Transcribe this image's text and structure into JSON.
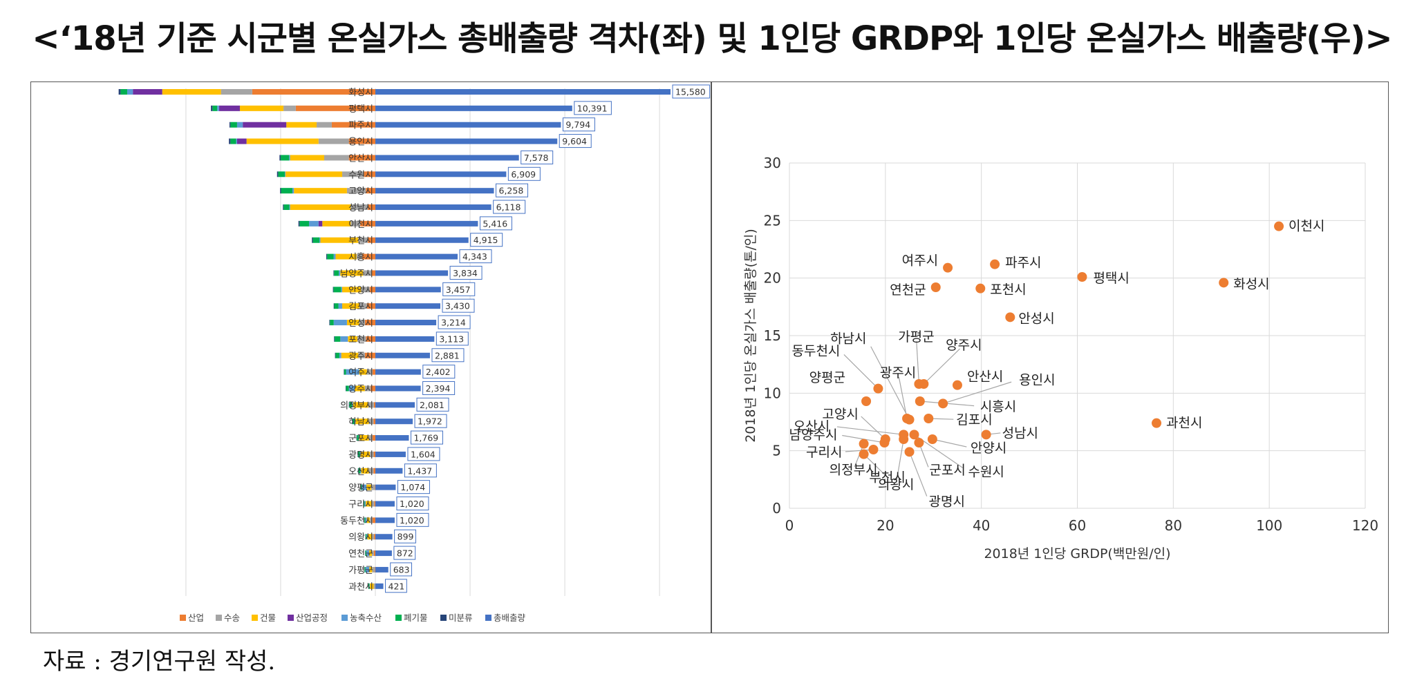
{
  "page": {
    "title": "<‘18년 기준 시군별 온실가스 총배출량 격차(좌) 및 1인당 GRDP와 1인당 온실가스 배출량(우)>",
    "source": "자료 : 경기연구원 작성."
  },
  "colors": {
    "산업": "#ED7D31",
    "수송": "#A5A5A5",
    "건물": "#FFC000",
    "산업공정": "#7030A0",
    "농축수산": "#5B9BD5",
    "폐기물": "#00B050",
    "미분류": "#264478",
    "총배출량": "#4472C4",
    "scatter_point": "#ED7D31"
  },
  "chart_data": [
    {
      "type": "bar",
      "orientation": "horizontal",
      "categories": [
        "화성시",
        "평택시",
        "파주시",
        "용인시",
        "안산시",
        "수원시",
        "고양시",
        "성남시",
        "이천시",
        "부천시",
        "시흥시",
        "남양주시",
        "안양시",
        "김포시",
        "안성시",
        "포천시",
        "광주시",
        "여주시",
        "양주시",
        "의정부시",
        "하남시",
        "군포시",
        "광명시",
        "오산시",
        "양평군",
        "구리시",
        "동두천시",
        "의왕시",
        "연천군",
        "가평군",
        "과천시"
      ],
      "total_label_strings": [
        "15,580",
        "10,391",
        "9,794",
        "9,604",
        "7,578",
        "6,909",
        "6,258",
        "6,118",
        "5,416",
        "4,915",
        "4,343",
        "3,834",
        "3,457",
        "3,430",
        "3,214",
        "3,113",
        "2,881",
        "2,402",
        "2,394",
        "2,081",
        "1,972",
        "1,769",
        "1,604",
        "1,437",
        "1,074",
        "1,020",
        "1,020",
        "899",
        "872",
        "683",
        "421"
      ],
      "series": [
        {
          "name": "총배출량",
          "values": [
            15580,
            10391,
            9794,
            9604,
            7578,
            6909,
            6258,
            6118,
            5416,
            4915,
            4343,
            3834,
            3457,
            3430,
            3214,
            3113,
            2881,
            2402,
            2394,
            2081,
            1972,
            1769,
            1604,
            1437,
            1074,
            1020,
            1020,
            899,
            872,
            683,
            421
          ]
        },
        {
          "name": "산업",
          "values": [
            6500,
            4200,
            2300,
            1400,
            1400,
            600,
            500,
            400,
            800,
            400,
            700,
            200,
            300,
            450,
            550,
            500,
            550,
            150,
            250,
            80,
            100,
            150,
            90,
            100,
            20,
            60,
            150,
            70,
            80,
            20,
            10
          ]
        },
        {
          "name": "수송",
          "values": [
            1650,
            650,
            800,
            1600,
            1300,
            1150,
            1000,
            900,
            500,
            500,
            300,
            450,
            450,
            400,
            300,
            450,
            350,
            300,
            300,
            300,
            250,
            200,
            200,
            250,
            200,
            150,
            150,
            100,
            100,
            150,
            80
          ]
        },
        {
          "name": "건물",
          "values": [
            3100,
            2300,
            1600,
            3800,
            1800,
            3000,
            2800,
            3200,
            1500,
            2000,
            1100,
            1200,
            1000,
            900,
            650,
            500,
            900,
            400,
            550,
            800,
            700,
            500,
            500,
            400,
            250,
            300,
            150,
            250,
            150,
            150,
            200
          ]
        },
        {
          "name": "산업공정",
          "values": [
            1550,
            1100,
            2300,
            500,
            0,
            0,
            0,
            0,
            200,
            0,
            0,
            0,
            0,
            0,
            0,
            0,
            0,
            0,
            0,
            0,
            0,
            0,
            0,
            0,
            0,
            0,
            0,
            0,
            0,
            0,
            0
          ]
        },
        {
          "name": "농축수산",
          "values": [
            300,
            100,
            300,
            50,
            50,
            30,
            80,
            40,
            500,
            50,
            100,
            80,
            60,
            200,
            700,
            400,
            100,
            700,
            300,
            50,
            60,
            30,
            30,
            50,
            250,
            60,
            80,
            50,
            150,
            200,
            30
          ]
        },
        {
          "name": "폐기물",
          "values": [
            350,
            250,
            350,
            300,
            450,
            350,
            600,
            300,
            500,
            350,
            350,
            250,
            400,
            220,
            200,
            300,
            200,
            100,
            150,
            150,
            100,
            100,
            100,
            100,
            50,
            50,
            50,
            50,
            50,
            50,
            50
          ]
        },
        {
          "name": "미분류",
          "values": [
            100,
            80,
            50,
            80,
            60,
            60,
            50,
            40,
            60,
            50,
            40,
            30,
            30,
            30,
            30,
            30,
            30,
            20,
            20,
            20,
            20,
            20,
            20,
            20,
            20,
            10,
            10,
            10,
            10,
            10,
            10
          ]
        }
      ],
      "xlim": [
        -15000,
        16500
      ],
      "legend": [
        "산업",
        "수송",
        "건물",
        "산업공정",
        "농축수산",
        "폐기물",
        "미분류",
        "총배출량"
      ],
      "legend_position": "bottom",
      "grid": true,
      "data_labels": true
    },
    {
      "type": "scatter",
      "xlabel": "2018년 1인당 GRDP(백만원/인)",
      "ylabel": "2018년 1인당 온실가스 배출량(톤/인)",
      "xlim": [
        0,
        120
      ],
      "ylim": [
        0,
        30
      ],
      "xticks": [
        "0",
        "20",
        "40",
        "60",
        "80",
        "100",
        "120"
      ],
      "yticks": [
        "0",
        "5",
        "10",
        "15",
        "20",
        "25",
        "30"
      ],
      "grid": true,
      "points": [
        {
          "label": "이천시",
          "x": 102,
          "y": 24.5
        },
        {
          "label": "화성시",
          "x": 90.5,
          "y": 19.6
        },
        {
          "label": "평택시",
          "x": 61,
          "y": 20.1
        },
        {
          "label": "파주시",
          "x": 42.8,
          "y": 21.2
        },
        {
          "label": "여주시",
          "x": 33,
          "y": 20.9
        },
        {
          "label": "포천시",
          "x": 39.8,
          "y": 19.1
        },
        {
          "label": "연천군",
          "x": 30.5,
          "y": 19.2
        },
        {
          "label": "안성시",
          "x": 46,
          "y": 16.6
        },
        {
          "label": "과천시",
          "x": 76.5,
          "y": 7.4
        },
        {
          "label": "가평군",
          "x": 27,
          "y": 10.8
        },
        {
          "label": "양주시",
          "x": 28,
          "y": 10.8
        },
        {
          "label": "광주시",
          "x": 24.5,
          "y": 7.8
        },
        {
          "label": "안산시",
          "x": 35,
          "y": 10.7
        },
        {
          "label": "용인시",
          "x": 32,
          "y": 9.1
        },
        {
          "label": "시흥시",
          "x": 27.2,
          "y": 9.3
        },
        {
          "label": "하남시",
          "x": 25,
          "y": 7.7
        },
        {
          "label": "동두천시",
          "x": 18.5,
          "y": 10.4
        },
        {
          "label": "양평군",
          "x": 16,
          "y": 9.3
        },
        {
          "label": "김포시",
          "x": 29,
          "y": 7.8
        },
        {
          "label": "오산시",
          "x": 23.8,
          "y": 6.4
        },
        {
          "label": "고양시",
          "x": 20,
          "y": 6.0
        },
        {
          "label": "남양주시",
          "x": 19.8,
          "y": 5.7
        },
        {
          "label": "구리시",
          "x": 17.5,
          "y": 5.1
        },
        {
          "label": "의정부시",
          "x": 15.5,
          "y": 5.6
        },
        {
          "label": "부천시",
          "x": 15.5,
          "y": 4.7
        },
        {
          "label": "의왕시",
          "x": 23.8,
          "y": 6.0
        },
        {
          "label": "성남시",
          "x": 41,
          "y": 6.4
        },
        {
          "label": "안양시",
          "x": 29.8,
          "y": 6.0
        },
        {
          "label": "군포시",
          "x": 27,
          "y": 5.7
        },
        {
          "label": "수원시",
          "x": 26,
          "y": 6.4
        },
        {
          "label": "광명시",
          "x": 25,
          "y": 4.9
        }
      ]
    }
  ]
}
